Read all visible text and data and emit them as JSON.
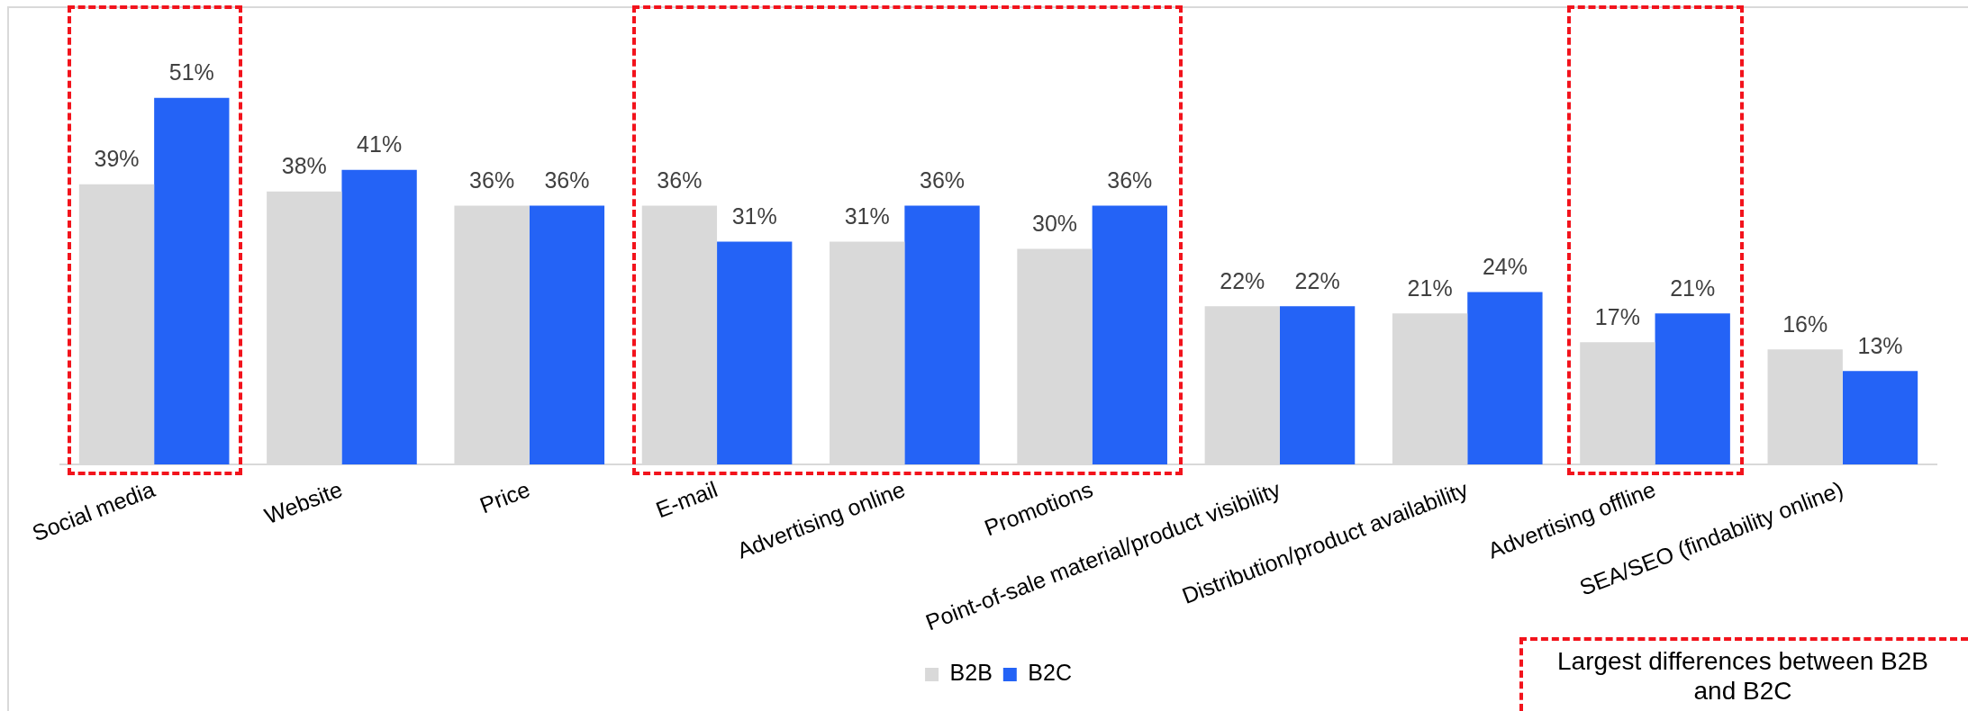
{
  "chart_data": {
    "type": "bar",
    "categories": [
      "Social media",
      "Website",
      "Price",
      "E-mail",
      "Advertising online",
      "Promotions",
      "Point-of-sale material/product visibility",
      "Distribution/product availability",
      "Advertising offline",
      "SEA/SEO (findability online)"
    ],
    "series": [
      {
        "name": "B2B",
        "color": "#d9d9d9",
        "values": [
          39,
          38,
          36,
          36,
          31,
          30,
          22,
          21,
          17,
          16
        ],
        "value_labels": [
          "39%",
          "38%",
          "36%",
          "36%",
          "31%",
          "30%",
          "22%",
          "21%",
          "17%",
          "16%"
        ]
      },
      {
        "name": "B2C",
        "color": "#2463f6",
        "values": [
          51,
          41,
          36,
          31,
          36,
          36,
          22,
          24,
          21,
          13
        ],
        "value_labels": [
          "51%",
          "41%",
          "36%",
          "31%",
          "36%",
          "36%",
          "22%",
          "24%",
          "21%",
          "13%"
        ]
      }
    ],
    "tick_labels": "x",
    "grid": false,
    "legend": "bottom",
    "annotations": [
      "Largest differences between B2B and B2C"
    ]
  }
}
